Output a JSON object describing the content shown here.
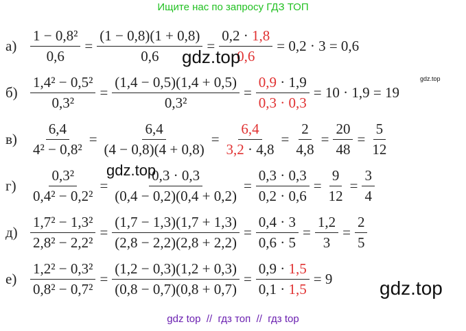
{
  "header": {
    "title": "Ищите нас по запросу ГДЗ ТОП"
  },
  "rows": [
    {
      "label": "а)",
      "parts": [
        {
          "num": [
            "1 − 0,8²"
          ],
          "den": [
            "0,6"
          ]
        },
        "=",
        {
          "num": [
            "(1 − 0,8)(1 + 0,8)"
          ],
          "den": [
            "0,6"
          ]
        },
        "=",
        {
          "num": [
            "0,2 · ",
            {
              "text": "1,8",
              "color": "#e03131"
            }
          ],
          "den": [
            {
              "text": "0,6",
              "color": "#e03131"
            }
          ]
        },
        "= 0,2 · 3 = 0,6"
      ]
    },
    {
      "label": "б)",
      "parts": [
        {
          "num": [
            "1,4² − 0,5²"
          ],
          "den": [
            "0,3²"
          ]
        },
        "=",
        {
          "num": [
            "(1,4 − 0,5)(1,4 + 0,5)"
          ],
          "den": [
            "0,3²"
          ]
        },
        "=",
        {
          "num": [
            {
              "text": "0,9",
              "color": "#e03131"
            },
            " · 1,9"
          ],
          "den": [
            {
              "text": "0,3 · 0,3",
              "color": "#e03131"
            }
          ]
        },
        "= 10 · 1,9 = 19"
      ]
    },
    {
      "label": "в)",
      "parts": [
        {
          "num": [
            "6,4"
          ],
          "den": [
            "4² − 0,8²"
          ]
        },
        "=",
        {
          "num": [
            "6,4"
          ],
          "den": [
            "(4 − 0,8)(4 + 0,8)"
          ]
        },
        "=",
        {
          "num": [
            {
              "text": "6,4",
              "color": "#e03131"
            }
          ],
          "den": [
            {
              "text": "3,2",
              "color": "#e03131"
            },
            " · 4,8"
          ]
        },
        "=",
        {
          "num": [
            "2"
          ],
          "den": [
            "4,8"
          ]
        },
        "=",
        {
          "num": [
            "20"
          ],
          "den": [
            "48"
          ]
        },
        "=",
        {
          "num": [
            "5"
          ],
          "den": [
            "12"
          ]
        }
      ]
    },
    {
      "label": "г)",
      "parts": [
        {
          "num": [
            "0,3²"
          ],
          "den": [
            "0,4² − 0,2²"
          ]
        },
        "=",
        {
          "num": [
            "0,3 · 0,3"
          ],
          "den": [
            "(0,4 − 0,2)(0,4 + 0,2)"
          ]
        },
        "=",
        {
          "num": [
            "0,3 · 0,3"
          ],
          "den": [
            "0,2 · 0,6"
          ]
        },
        "=",
        {
          "num": [
            "9"
          ],
          "den": [
            "12"
          ]
        },
        "=",
        {
          "num": [
            "3"
          ],
          "den": [
            "4"
          ]
        }
      ]
    },
    {
      "label": "д)",
      "parts": [
        {
          "num": [
            "1,7² − 1,3²"
          ],
          "den": [
            "2,8² − 2,2²"
          ]
        },
        "=",
        {
          "num": [
            "(1,7 − 1,3)(1,7 + 1,3)"
          ],
          "den": [
            "(2,8 − 2,2)(2,8 + 2,2)"
          ]
        },
        "=",
        {
          "num": [
            "0,4 · 3"
          ],
          "den": [
            "0,6 · 5"
          ]
        },
        "=",
        {
          "num": [
            "1,2"
          ],
          "den": [
            "3"
          ]
        },
        "=",
        {
          "num": [
            "2"
          ],
          "den": [
            "5"
          ]
        }
      ]
    },
    {
      "label": "е)",
      "parts": [
        {
          "num": [
            "1,2² − 0,3²"
          ],
          "den": [
            "0,8² − 0,7²"
          ]
        },
        "=",
        {
          "num": [
            "(1,2 − 0,3)(1,2 + 0,3)"
          ],
          "den": [
            "(0,8 − 0,7)(0,8 + 0,7)"
          ]
        },
        "=",
        {
          "num": [
            "0,9 · ",
            {
              "text": "1,5",
              "color": "#e03131"
            }
          ],
          "den": [
            "0,1 · ",
            {
              "text": "1,5",
              "color": "#e03131"
            }
          ]
        },
        "= 9"
      ]
    }
  ],
  "watermarks": [
    "gdz.top",
    "gdz.top",
    "gdz.top",
    "gdz.top"
  ],
  "footer": {
    "text": "gdz top  //  гдз топ  //  гдз top"
  }
}
